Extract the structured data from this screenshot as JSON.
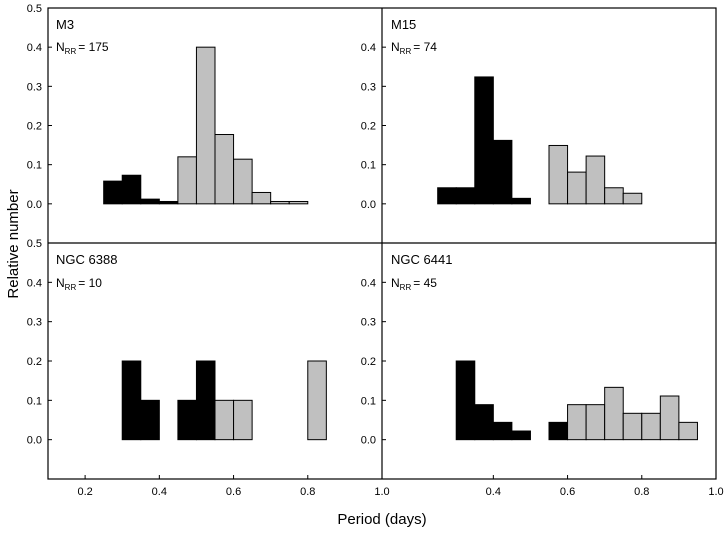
{
  "figure": {
    "ylabel": "Relative number",
    "xlabel": "Period (days)",
    "xlim": [
      0.1,
      1.0
    ],
    "ylim": [
      -0.1,
      0.5
    ],
    "bin_width": 0.05,
    "colors": {
      "metal_poor": "#000000",
      "metal_rich": "#c0c0c0",
      "edge": "#000000"
    },
    "y_ticks_left_top": [
      "0.5",
      "0.4",
      "0.3",
      "0.2",
      "0.1",
      "0.0"
    ],
    "y_ticks_left_bottom": [
      "0.5",
      "0.4",
      "0.3",
      "0.2",
      "0.1",
      "0.0"
    ],
    "y_ticks_mid_top": [
      "0.4",
      "0.3",
      "0.2",
      "0.1",
      "0.0"
    ],
    "y_ticks_mid_bottom": [
      "0.4",
      "0.3",
      "0.2",
      "0.1",
      "0.0"
    ],
    "x_ticks_left": [
      "0.2",
      "0.4",
      "0.6",
      "0.8",
      "1.0"
    ],
    "x_ticks_right": [
      "0.4",
      "0.6",
      "0.8",
      "1.0"
    ]
  },
  "chart_data": [
    {
      "type": "bar",
      "title": "M3",
      "nrr_main": "N",
      "nrr_sub": "RR",
      "nrr_value": "= 175",
      "bars": [
        {
          "x": 0.25,
          "y": 0.058,
          "group": "metal_poor"
        },
        {
          "x": 0.3,
          "y": 0.073,
          "group": "metal_poor"
        },
        {
          "x": 0.35,
          "y": 0.012,
          "group": "metal_poor"
        },
        {
          "x": 0.4,
          "y": 0.006,
          "group": "metal_poor"
        },
        {
          "x": 0.45,
          "y": 0.12,
          "group": "metal_rich"
        },
        {
          "x": 0.5,
          "y": 0.4,
          "group": "metal_rich"
        },
        {
          "x": 0.55,
          "y": 0.177,
          "group": "metal_rich"
        },
        {
          "x": 0.6,
          "y": 0.114,
          "group": "metal_rich"
        },
        {
          "x": 0.65,
          "y": 0.029,
          "group": "metal_rich"
        },
        {
          "x": 0.7,
          "y": 0.006,
          "group": "metal_rich"
        },
        {
          "x": 0.75,
          "y": 0.006,
          "group": "metal_rich"
        }
      ]
    },
    {
      "type": "bar",
      "title": "M15",
      "nrr_main": "N",
      "nrr_sub": "RR",
      "nrr_value": "= 74",
      "bars": [
        {
          "x": 0.25,
          "y": 0.041,
          "group": "metal_poor"
        },
        {
          "x": 0.3,
          "y": 0.041,
          "group": "metal_poor"
        },
        {
          "x": 0.35,
          "y": 0.324,
          "group": "metal_poor"
        },
        {
          "x": 0.4,
          "y": 0.162,
          "group": "metal_poor"
        },
        {
          "x": 0.45,
          "y": 0.014,
          "group": "metal_poor"
        },
        {
          "x": 0.55,
          "y": 0.149,
          "group": "metal_rich"
        },
        {
          "x": 0.6,
          "y": 0.081,
          "group": "metal_rich"
        },
        {
          "x": 0.65,
          "y": 0.122,
          "group": "metal_rich"
        },
        {
          "x": 0.7,
          "y": 0.041,
          "group": "metal_rich"
        },
        {
          "x": 0.75,
          "y": 0.027,
          "group": "metal_rich"
        }
      ]
    },
    {
      "type": "bar",
      "title": "NGC 6388",
      "nrr_main": "N",
      "nrr_sub": "RR",
      "nrr_value": "= 10",
      "bars": [
        {
          "x": 0.3,
          "y": 0.2,
          "group": "metal_poor"
        },
        {
          "x": 0.35,
          "y": 0.1,
          "group": "metal_poor"
        },
        {
          "x": 0.45,
          "y": 0.1,
          "group": "metal_poor"
        },
        {
          "x": 0.5,
          "y": 0.2,
          "group": "metal_poor"
        },
        {
          "x": 0.55,
          "y": 0.1,
          "group": "metal_rich"
        },
        {
          "x": 0.6,
          "y": 0.1,
          "group": "metal_rich"
        },
        {
          "x": 0.8,
          "y": 0.2,
          "group": "metal_rich"
        }
      ]
    },
    {
      "type": "bar",
      "title": "NGC 6441",
      "nrr_main": "N",
      "nrr_sub": "RR",
      "nrr_value": "= 45",
      "bars": [
        {
          "x": 0.3,
          "y": 0.2,
          "group": "metal_poor"
        },
        {
          "x": 0.35,
          "y": 0.089,
          "group": "metal_poor"
        },
        {
          "x": 0.4,
          "y": 0.044,
          "group": "metal_poor"
        },
        {
          "x": 0.45,
          "y": 0.022,
          "group": "metal_poor"
        },
        {
          "x": 0.55,
          "y": 0.044,
          "group": "metal_poor"
        },
        {
          "x": 0.6,
          "y": 0.089,
          "group": "metal_rich"
        },
        {
          "x": 0.65,
          "y": 0.089,
          "group": "metal_rich"
        },
        {
          "x": 0.7,
          "y": 0.133,
          "group": "metal_rich"
        },
        {
          "x": 0.75,
          "y": 0.067,
          "group": "metal_rich"
        },
        {
          "x": 0.8,
          "y": 0.067,
          "group": "metal_rich"
        },
        {
          "x": 0.85,
          "y": 0.111,
          "group": "metal_rich"
        },
        {
          "x": 0.9,
          "y": 0.044,
          "group": "metal_rich"
        }
      ]
    }
  ]
}
